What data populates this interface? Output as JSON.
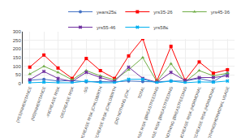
{
  "chart_data": {
    "type": "line",
    "categories": [
      "(YES)INHERITANCE",
      "(NO)INHERITANCE",
      "-INCREASE RISK",
      "-DECREASE RISK",
      "-SG",
      "(INCREASE RISK (CHILDBIRTH",
      "(DECREASE RISK (CHILDBIRTH",
      "(DO NOTHING (CHI...",
      "TOTAL",
      "(INCREASE RISK (BREASTFEEDING",
      "(DECREASE RISK (BREASTFEEDING",
      "(DO NOTHING (BREASTFEEDING",
      "-INCREASE RISK (HORMONAL",
      "-DECREASE RISK (HORMONAL",
      "(DO NOTHING)HORMONAL USAGE"
    ],
    "series": [
      {
        "name": "years25≤",
        "color": "#4472C4",
        "marker": "circle",
        "values": [
          20,
          25,
          15,
          18,
          10,
          12,
          10,
          15,
          12,
          10,
          15,
          15,
          30,
          12,
          60
        ]
      },
      {
        "name": "yrs35-26",
        "color": "#FF0000",
        "marker": "square",
        "values": [
          95,
          165,
          90,
          30,
          145,
          75,
          30,
          160,
          260,
          15,
          215,
          20,
          125,
          60,
          80
        ]
      },
      {
        "name": "yrs45-36",
        "color": "#70AD47",
        "marker": "triangle-up",
        "values": [
          55,
          100,
          65,
          22,
          75,
          45,
          22,
          80,
          150,
          12,
          115,
          10,
          75,
          45,
          60
        ]
      },
      {
        "name": "yrs55-46",
        "color": "#7030A0",
        "marker": "x",
        "values": [
          22,
          70,
          30,
          12,
          65,
          35,
          12,
          95,
          30,
          8,
          65,
          18,
          35,
          35,
          45
        ]
      },
      {
        "name": "yrs58≤",
        "color": "#00B0F0",
        "marker": "x",
        "values": [
          5,
          8,
          5,
          5,
          15,
          5,
          5,
          25,
          25,
          5,
          15,
          5,
          10,
          8,
          15
        ]
      }
    ],
    "ylim": [
      0,
      300
    ],
    "yticks": [
      0,
      50,
      100,
      150,
      200,
      250,
      300
    ],
    "grid": true,
    "legend": "upper right"
  }
}
